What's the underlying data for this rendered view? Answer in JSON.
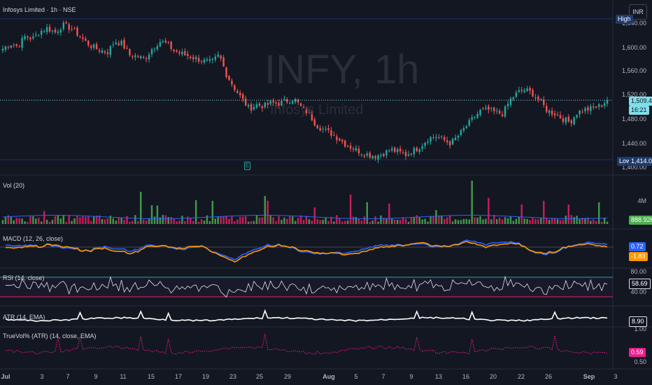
{
  "header": {
    "title": "Infosys Limited · 1h · NSE",
    "currency": "INR"
  },
  "watermark": {
    "symbol": "INFY, 1h",
    "name": "Infosys Limited"
  },
  "price_axis": {
    "ticks": [
      "1,600.00",
      "1,560.00",
      "1,520.00",
      "1,480.00",
      "1,440.00",
      "1,400.00"
    ],
    "top_partial": "1,640.00",
    "high_label": "High",
    "low_label": "Low",
    "low_value": "1,414.00",
    "last_price": "1,509.40",
    "countdown": "16:21"
  },
  "panes": {
    "volume": {
      "title": "Vol (20)",
      "axis": "4M",
      "value": "888.92K"
    },
    "macd": {
      "title": "MACD (12, 26, close)",
      "macd_value": "0.72",
      "signal_value": "-1.83"
    },
    "rsi": {
      "title": "RSI (14, close)",
      "upper": "80.00",
      "lower": "40.00",
      "value": "58.69"
    },
    "atr": {
      "title": "ATR (14, EMA)",
      "value": "8.90"
    },
    "truevol": {
      "title": "TrueVol% (ATR) (14, close, EMA)",
      "axis_top": "1.00",
      "axis_bottom": "0.50",
      "value": "0.59"
    }
  },
  "earnings_marker": "E",
  "x_axis": [
    "Jul",
    "3",
    "7",
    "9",
    "11",
    "15",
    "17",
    "19",
    "23",
    "25",
    "29",
    "Aug",
    "5",
    "7",
    "9",
    "13",
    "16",
    "20",
    "22",
    "26",
    "Sep",
    "3"
  ],
  "colors": {
    "up": "#26a69a",
    "down": "#ef5350",
    "macd": "#2962ff",
    "signal": "#ff9800",
    "rsi": "#e0e3eb",
    "truevol": "#e91e8c",
    "volume_ma": "#2962ff",
    "last_price_bg": "#80deea"
  },
  "chart_data": {
    "type": "candlestick",
    "approx_close_path": [
      1592,
      1600,
      1596,
      1612,
      1608,
      1620,
      1625,
      1618,
      1630,
      1626,
      1616,
      1604,
      1595,
      1590,
      1586,
      1604,
      1600,
      1582,
      1580,
      1575,
      1592,
      1604,
      1600,
      1588,
      1584,
      1580,
      1576,
      1572,
      1570,
      1582,
      1550,
      1530,
      1512,
      1496,
      1502,
      1500,
      1505,
      1504,
      1508,
      1512,
      1498,
      1488,
      1470,
      1462,
      1456,
      1448,
      1438,
      1432,
      1426,
      1422,
      1420,
      1424,
      1430,
      1426,
      1422,
      1428,
      1436,
      1448,
      1452,
      1446,
      1440,
      1452,
      1466,
      1480,
      1492,
      1494,
      1490,
      1488,
      1510,
      1522,
      1526,
      1520,
      1508,
      1492,
      1488,
      1480,
      1474,
      1490,
      1494,
      1496,
      1500,
      1509.4
    ],
    "high": 1640,
    "low": 1414,
    "last": 1509.4,
    "ylim": [
      1395,
      1650
    ]
  }
}
